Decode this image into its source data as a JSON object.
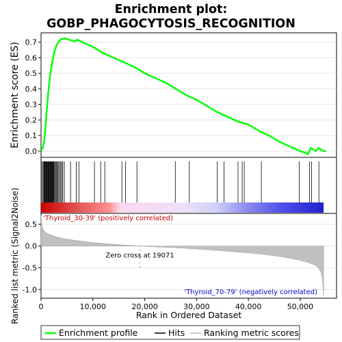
{
  "title_line1": "Enrichment plot:",
  "title_line2": "GOBP_PHAGOCYTOSIS_RECOGNITION",
  "chart_data": {
    "type": "line",
    "top_panel": {
      "ylabel": "Enrichment score (ES)",
      "ylim": [
        -0.04,
        0.76
      ],
      "yticks": [
        "0.0",
        "0.1",
        "0.2",
        "0.3",
        "0.4",
        "0.5",
        "0.6",
        "0.7"
      ],
      "ytick_values": [
        0.0,
        0.1,
        0.2,
        0.3,
        0.4,
        0.5,
        0.6,
        0.7
      ],
      "series_color": "#00ff00",
      "es_curve": {
        "x": [
          0,
          300,
          600,
          800,
          1000,
          1200,
          1400,
          1600,
          1800,
          2000,
          2200,
          2400,
          2600,
          2800,
          3000,
          3300,
          3600,
          3900,
          4200,
          4600,
          5000,
          5500,
          6000,
          6500,
          7000,
          7400,
          8000,
          10000,
          12000,
          14000,
          16000,
          18000,
          20000,
          22000,
          24000,
          26000,
          28000,
          30000,
          32000,
          34000,
          36000,
          38000,
          39000,
          40000,
          42000,
          44000,
          46000,
          48000,
          50000,
          51000,
          51500,
          52000,
          52500,
          53000,
          53500,
          54000,
          54500,
          55000
        ],
        "y": [
          0.0,
          0.02,
          0.06,
          0.13,
          0.22,
          0.3,
          0.38,
          0.44,
          0.5,
          0.54,
          0.58,
          0.61,
          0.64,
          0.66,
          0.68,
          0.7,
          0.71,
          0.72,
          0.72,
          0.725,
          0.72,
          0.715,
          0.71,
          0.705,
          0.715,
          0.71,
          0.7,
          0.67,
          0.63,
          0.6,
          0.57,
          0.54,
          0.5,
          0.47,
          0.44,
          0.4,
          0.36,
          0.33,
          0.29,
          0.25,
          0.22,
          0.19,
          0.18,
          0.17,
          0.13,
          0.1,
          0.06,
          0.03,
          0.0,
          -0.01,
          -0.02,
          0.02,
          0.01,
          0.0,
          0.02,
          0.01,
          0.0,
          0.0
        ]
      }
    },
    "hits_panel": {
      "hit_positions": [
        200,
        400,
        550,
        650,
        750,
        850,
        950,
        1050,
        1150,
        1250,
        1350,
        1450,
        1550,
        1650,
        1750,
        1850,
        1950,
        2050,
        2150,
        2250,
        2350,
        2450,
        2600,
        2750,
        2900,
        3050,
        3200,
        3400,
        3600,
        3800,
        4000,
        4200,
        4500,
        5700,
        6800,
        7300,
        10300,
        11500,
        12300,
        15600,
        16300,
        18500,
        25900,
        28600,
        34000,
        35300,
        38000,
        38800,
        39200,
        42500,
        49800,
        51800,
        52200,
        53600
      ],
      "gradient_colors": [
        "#cc0000",
        "#ff8080",
        "#f8e8f8",
        "#d8d8f8",
        "#8080f0",
        "#3030e0"
      ]
    },
    "bottom_panel": {
      "ylabel": "Ranked list metric (Signal2Noise)",
      "ylim": [
        -1.2,
        0.75
      ],
      "yticks": [
        "0.5",
        "0.0",
        "-0.5",
        "-1.0"
      ],
      "ytick_values": [
        0.5,
        0.0,
        -0.5,
        -1.0
      ],
      "metric_curve": {
        "x": [
          0,
          200,
          500,
          1000,
          2000,
          3000,
          4000,
          6000,
          8000,
          10000,
          12000,
          14000,
          16000,
          18000,
          19071,
          22000,
          26000,
          30000,
          34000,
          38000,
          42000,
          46000,
          48000,
          50000,
          51000,
          52000,
          53000,
          53500,
          54000,
          54300,
          54500
        ],
        "y": [
          0.7,
          0.45,
          0.36,
          0.3,
          0.25,
          0.21,
          0.18,
          0.14,
          0.11,
          0.08,
          0.06,
          0.04,
          0.025,
          0.01,
          0.0,
          -0.02,
          -0.04,
          -0.07,
          -0.1,
          -0.14,
          -0.18,
          -0.24,
          -0.28,
          -0.33,
          -0.36,
          -0.4,
          -0.45,
          -0.5,
          -0.6,
          -0.8,
          -1.15
        ]
      },
      "zero_cross_label": "Zero cross at 19071",
      "zero_cross_x": 19071,
      "pos_label": "'Thyroid_30-39' (positively correlated)",
      "pos_color": "#cc0000",
      "neg_label": "'Thyroid_70-79' (negatively correlated)",
      "neg_color": "#0000cc"
    },
    "xlabel": "Rank in Ordered Dataset",
    "xlim": [
      0,
      57000
    ],
    "xticks": [
      "0",
      "10,000",
      "20,000",
      "30,000",
      "40,000",
      "50,000"
    ],
    "xtick_values": [
      0,
      10000,
      20000,
      30000,
      40000,
      50000
    ],
    "legend": {
      "placement": "bottom",
      "items": [
        "Enrichment profile",
        "Hits",
        "Ranking metric scores"
      ]
    }
  }
}
